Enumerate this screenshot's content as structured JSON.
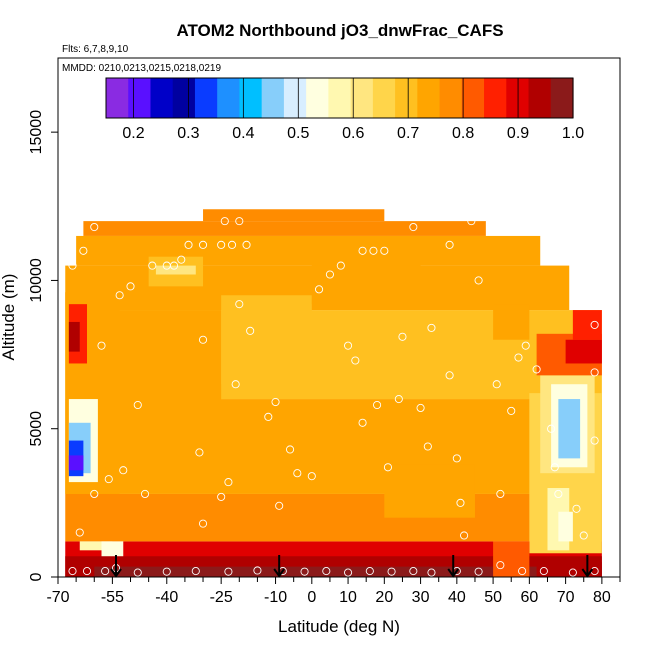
{
  "chart_data": {
    "type": "heatmap",
    "title": "ATOM2 Northbound jO3_dnwFrac_CAFS",
    "flights_label": "Flts: 6,7,8,9,10",
    "dates_label": "MMDD: 0210,0213,0215,0218,0219",
    "xlabel": "Latitude (deg N)",
    "ylabel": "Altitude (m)",
    "xlim": [
      -70,
      85
    ],
    "ylim": [
      0,
      17500
    ],
    "x_ticks": [
      -70,
      -55,
      -40,
      -25,
      -10,
      0,
      10,
      20,
      30,
      40,
      50,
      60,
      70,
      80
    ],
    "x_tick_labels": [
      "-70",
      "-55",
      "-40",
      "-25",
      "-10",
      "0",
      "10",
      "20",
      "30",
      "40",
      "50",
      "60",
      "70",
      "80"
    ],
    "x_minor_ticks": [
      -65,
      -60,
      -50,
      -45,
      -35,
      -30,
      -20,
      -15,
      -5,
      5,
      15,
      25,
      35,
      45,
      55,
      65,
      75,
      85
    ],
    "y_ticks": [
      0,
      5000,
      10000,
      15000
    ],
    "y_tick_labels": [
      "0",
      "5000",
      "10000",
      "15000"
    ],
    "colorbar": {
      "range": [
        0.15,
        1.0
      ],
      "ticks": [
        0.2,
        0.3,
        0.4,
        0.5,
        0.6,
        0.7,
        0.8,
        0.9,
        1.0
      ],
      "tick_labels": [
        "0.2",
        "0.3",
        "0.4",
        "0.5",
        "0.6",
        "0.7",
        "0.8",
        "0.9",
        "1.0"
      ],
      "colors": [
        "#8a2be2",
        "#5a10ff",
        "#0000c8",
        "#0000a0",
        "#0a3cff",
        "#1e90ff",
        "#00bfff",
        "#87cefa",
        "#d8eeff",
        "#ffffe0",
        "#fff8b0",
        "#ffe680",
        "#ffd54a",
        "#ffc020",
        "#ffa500",
        "#ff8c00",
        "#ff5a00",
        "#ff2000",
        "#e00000",
        "#b00000",
        "#8b1a1a"
      ]
    },
    "arrows_lat": [
      -54,
      -9,
      39,
      76
    ],
    "field_cells": [
      {
        "x": [
          -68,
          80
        ],
        "y": [
          0,
          1200
        ],
        "v": 0.88
      },
      {
        "x": [
          -68,
          80
        ],
        "y": [
          1200,
          2800
        ],
        "v": 0.76
      },
      {
        "x": [
          -68,
          80
        ],
        "y": [
          2800,
          6000
        ],
        "v": 0.72
      },
      {
        "x": [
          -68,
          80
        ],
        "y": [
          6000,
          9000
        ],
        "v": 0.71
      },
      {
        "x": [
          -68,
          71
        ],
        "y": [
          9000,
          10500
        ],
        "v": 0.72
      },
      {
        "x": [
          -65,
          63
        ],
        "y": [
          10500,
          11500
        ],
        "v": 0.74
      },
      {
        "x": [
          -63,
          48
        ],
        "y": [
          11500,
          12000
        ],
        "v": 0.76
      },
      {
        "x": [
          -30,
          20
        ],
        "y": [
          12000,
          12400
        ],
        "v": 0.76
      },
      {
        "x": [
          -62,
          -25
        ],
        "y": [
          5000,
          9000
        ],
        "v": 0.74
      },
      {
        "x": [
          -45,
          -30
        ],
        "y": [
          9800,
          10800
        ],
        "v": 0.69
      },
      {
        "x": [
          -43,
          -32
        ],
        "y": [
          10200,
          10500
        ],
        "v": 0.62
      },
      {
        "x": [
          -15,
          -2
        ],
        "y": [
          7500,
          8800
        ],
        "v": 0.63
      },
      {
        "x": [
          -12,
          -4
        ],
        "y": [
          7700,
          8200
        ],
        "v": 0.6
      },
      {
        "x": [
          -25,
          0
        ],
        "y": [
          6500,
          9500
        ],
        "v": 0.7
      },
      {
        "x": [
          -68,
          -53
        ],
        "y": [
          2800,
          9600
        ],
        "v": 0.74
      },
      {
        "x": [
          -67,
          -59
        ],
        "y": [
          3200,
          6000
        ],
        "v": 0.55
      },
      {
        "x": [
          -67,
          -61
        ],
        "y": [
          3500,
          5200
        ],
        "v": 0.45
      },
      {
        "x": [
          -67,
          -63
        ],
        "y": [
          3400,
          4600
        ],
        "v": 0.35
      },
      {
        "x": [
          -67,
          -63
        ],
        "y": [
          3600,
          4100
        ],
        "v": 0.22
      },
      {
        "x": [
          -67,
          -62
        ],
        "y": [
          7200,
          9200
        ],
        "v": 0.86
      },
      {
        "x": [
          -67,
          -64
        ],
        "y": [
          7600,
          8600
        ],
        "v": 0.93
      },
      {
        "x": [
          -64,
          -55
        ],
        "y": [
          900,
          1200
        ],
        "v": 0.58
      },
      {
        "x": [
          -58,
          -52
        ],
        "y": [
          400,
          1200
        ],
        "v": 0.55
      },
      {
        "x": [
          60,
          80
        ],
        "y": [
          800,
          6200
        ],
        "v": 0.66
      },
      {
        "x": [
          63,
          78
        ],
        "y": [
          3500,
          6800
        ],
        "v": 0.6
      },
      {
        "x": [
          66,
          76
        ],
        "y": [
          3700,
          6500
        ],
        "v": 0.53
      },
      {
        "x": [
          68,
          74
        ],
        "y": [
          4000,
          6000
        ],
        "v": 0.47
      },
      {
        "x": [
          65,
          71
        ],
        "y": [
          900,
          3000
        ],
        "v": 0.58
      },
      {
        "x": [
          68,
          72
        ],
        "y": [
          1200,
          2200
        ],
        "v": 0.54
      },
      {
        "x": [
          62,
          80
        ],
        "y": [
          6800,
          8200
        ],
        "v": 0.8
      },
      {
        "x": [
          70,
          80
        ],
        "y": [
          7200,
          8000
        ],
        "v": 0.88
      },
      {
        "x": [
          72,
          80
        ],
        "y": [
          8000,
          9000
        ],
        "v": 0.85
      },
      {
        "x": [
          50,
          60
        ],
        "y": [
          8000,
          9200
        ],
        "v": 0.72
      },
      {
        "x": [
          -68,
          80
        ],
        "y": [
          0,
          700
        ],
        "v": 0.94
      },
      {
        "x": [
          -60,
          80
        ],
        "y": [
          0,
          350
        ],
        "v": 0.96
      },
      {
        "x": [
          50,
          60
        ],
        "y": [
          0,
          1200
        ],
        "v": 0.8
      },
      {
        "x": [
          62,
          80
        ],
        "y": [
          0,
          500
        ],
        "v": 0.92
      },
      {
        "x": [
          20,
          45
        ],
        "y": [
          2000,
          3800
        ],
        "v": 0.74
      },
      {
        "x": [
          0,
          30
        ],
        "y": [
          9200,
          11000
        ],
        "v": 0.73
      }
    ],
    "observation_points": [
      {
        "lat": -66,
        "alt": 200
      },
      {
        "lat": -62,
        "alt": 200
      },
      {
        "lat": -57,
        "alt": 200
      },
      {
        "lat": -54,
        "alt": 300
      },
      {
        "lat": -48,
        "alt": 150
      },
      {
        "lat": -40,
        "alt": 180
      },
      {
        "lat": -32,
        "alt": 200
      },
      {
        "lat": -23,
        "alt": 180
      },
      {
        "lat": -15,
        "alt": 220
      },
      {
        "lat": -8,
        "alt": 200
      },
      {
        "lat": -2,
        "alt": 180
      },
      {
        "lat": 4,
        "alt": 200
      },
      {
        "lat": 10,
        "alt": 150
      },
      {
        "lat": 16,
        "alt": 200
      },
      {
        "lat": 22,
        "alt": 180
      },
      {
        "lat": 28,
        "alt": 200
      },
      {
        "lat": 33,
        "alt": 150
      },
      {
        "lat": 40,
        "alt": 200
      },
      {
        "lat": 46,
        "alt": 180
      },
      {
        "lat": 52,
        "alt": 400
      },
      {
        "lat": 58,
        "alt": 200
      },
      {
        "lat": 64,
        "alt": 200
      },
      {
        "lat": 72,
        "alt": 150
      },
      {
        "lat": 78,
        "alt": 200
      },
      {
        "lat": -64,
        "alt": 1500
      },
      {
        "lat": -60,
        "alt": 2800
      },
      {
        "lat": -56,
        "alt": 3300
      },
      {
        "lat": -52,
        "alt": 3600
      },
      {
        "lat": -58,
        "alt": 7800
      },
      {
        "lat": -53,
        "alt": 9500
      },
      {
        "lat": -50,
        "alt": 9800
      },
      {
        "lat": -48,
        "alt": 5800
      },
      {
        "lat": -46,
        "alt": 2800
      },
      {
        "lat": -44,
        "alt": 10500
      },
      {
        "lat": -40,
        "alt": 10500
      },
      {
        "lat": -38,
        "alt": 10500
      },
      {
        "lat": -36,
        "alt": 10700
      },
      {
        "lat": -34,
        "alt": 11200
      },
      {
        "lat": -30,
        "alt": 11200
      },
      {
        "lat": -25,
        "alt": 11200
      },
      {
        "lat": -22,
        "alt": 11200
      },
      {
        "lat": -18,
        "alt": 11200
      },
      {
        "lat": -24,
        "alt": 12000
      },
      {
        "lat": -20,
        "alt": 12000
      },
      {
        "lat": -66,
        "alt": 10500
      },
      {
        "lat": -63,
        "alt": 11000
      },
      {
        "lat": -60,
        "alt": 11800
      },
      {
        "lat": -30,
        "alt": 8000
      },
      {
        "lat": -31,
        "alt": 4200
      },
      {
        "lat": -25,
        "alt": 2700
      },
      {
        "lat": -23,
        "alt": 3200
      },
      {
        "lat": -30,
        "alt": 1800
      },
      {
        "lat": -21,
        "alt": 6500
      },
      {
        "lat": -17,
        "alt": 8300
      },
      {
        "lat": -20,
        "alt": 9200
      },
      {
        "lat": -12,
        "alt": 5400
      },
      {
        "lat": -10,
        "alt": 5900
      },
      {
        "lat": -9,
        "alt": 2400
      },
      {
        "lat": -6,
        "alt": 4300
      },
      {
        "lat": -4,
        "alt": 3500
      },
      {
        "lat": 0,
        "alt": 3400
      },
      {
        "lat": 2,
        "alt": 9700
      },
      {
        "lat": 5,
        "alt": 10200
      },
      {
        "lat": 8,
        "alt": 10500
      },
      {
        "lat": 10,
        "alt": 7800
      },
      {
        "lat": 12,
        "alt": 7300
      },
      {
        "lat": 14,
        "alt": 5200
      },
      {
        "lat": 14,
        "alt": 11000
      },
      {
        "lat": 17,
        "alt": 11000
      },
      {
        "lat": 20,
        "alt": 11000
      },
      {
        "lat": 18,
        "alt": 5800
      },
      {
        "lat": 21,
        "alt": 3700
      },
      {
        "lat": 24,
        "alt": 6000
      },
      {
        "lat": 25,
        "alt": 8100
      },
      {
        "lat": 28,
        "alt": 11800
      },
      {
        "lat": 30,
        "alt": 5700
      },
      {
        "lat": 32,
        "alt": 4400
      },
      {
        "lat": 33,
        "alt": 8400
      },
      {
        "lat": 33,
        "alt": 12500
      },
      {
        "lat": 38,
        "alt": 11200
      },
      {
        "lat": 38,
        "alt": 6800
      },
      {
        "lat": 40,
        "alt": 4000
      },
      {
        "lat": 41,
        "alt": 2500
      },
      {
        "lat": 42,
        "alt": 1400
      },
      {
        "lat": 44,
        "alt": 12000
      },
      {
        "lat": 46,
        "alt": 10000
      },
      {
        "lat": 51,
        "alt": 6500
      },
      {
        "lat": 52,
        "alt": 2800
      },
      {
        "lat": 55,
        "alt": 5600
      },
      {
        "lat": 57,
        "alt": 7400
      },
      {
        "lat": 59,
        "alt": 7800
      },
      {
        "lat": 62,
        "alt": 7000
      },
      {
        "lat": 66,
        "alt": 5000
      },
      {
        "lat": 67,
        "alt": 3700
      },
      {
        "lat": 68,
        "alt": 2800
      },
      {
        "lat": 73,
        "alt": 2300
      },
      {
        "lat": 75,
        "alt": 1400
      },
      {
        "lat": 78,
        "alt": 4600
      },
      {
        "lat": 78,
        "alt": 6900
      },
      {
        "lat": 78,
        "alt": 8500
      }
    ]
  }
}
